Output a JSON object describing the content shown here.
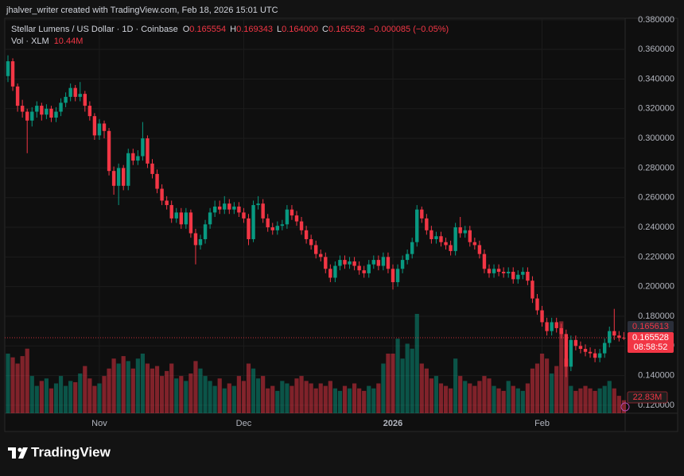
{
  "header": {
    "author_line": "jhalver_writer created with TradingView.com, Feb 18, 2026 15:01 UTC"
  },
  "footer": {
    "brand": "TradingView"
  },
  "chart_data": {
    "type": "candlestick",
    "title": "Stellar Lumens / US Dollar · 1D · Coinbase",
    "legend_ohlc_labels": [
      "O",
      "H",
      "L",
      "C"
    ],
    "legend_ohlc_values": [
      "0.165554",
      "0.169343",
      "0.164000",
      "0.165528"
    ],
    "change_label": "−0.000085 (−0.05%)",
    "volume_title": "Vol · XLM",
    "volume_last_label": "10.44M",
    "volume_side_label": "22.83M",
    "price_side_label": "0.165613",
    "last_price_label": "0.165528",
    "countdown_label": "08:58:52",
    "up_color": "#089981",
    "down_color": "#f23645",
    "grid": true,
    "ylim": [
      0.1146,
      0.381
    ],
    "yticks": [
      {
        "value": 0.12,
        "label": "0.120000"
      },
      {
        "value": 0.14,
        "label": "0.140000"
      },
      {
        "value": 0.16,
        "label": "0.160000"
      },
      {
        "value": 0.18,
        "label": "0.180000"
      },
      {
        "value": 0.2,
        "label": "0.200000"
      },
      {
        "value": 0.22,
        "label": "0.220000"
      },
      {
        "value": 0.24,
        "label": "0.240000"
      },
      {
        "value": 0.26,
        "label": "0.260000"
      },
      {
        "value": 0.28,
        "label": "0.280000"
      },
      {
        "value": 0.3,
        "label": "0.300000"
      },
      {
        "value": 0.32,
        "label": "0.320000"
      },
      {
        "value": 0.34,
        "label": "0.340000"
      },
      {
        "value": 0.36,
        "label": "0.360000"
      },
      {
        "value": 0.38,
        "label": "0.380000"
      }
    ],
    "categories": [
      null,
      null,
      null,
      null,
      null,
      null,
      null,
      null,
      null,
      null,
      null,
      null,
      null,
      null,
      null,
      null,
      null,
      null,
      null,
      "Nov",
      null,
      null,
      null,
      null,
      null,
      null,
      null,
      null,
      null,
      null,
      null,
      null,
      null,
      null,
      null,
      null,
      null,
      null,
      null,
      null,
      null,
      null,
      null,
      null,
      null,
      null,
      null,
      null,
      null,
      "Dec",
      null,
      null,
      null,
      null,
      null,
      null,
      null,
      null,
      null,
      null,
      null,
      null,
      null,
      null,
      null,
      null,
      null,
      null,
      null,
      null,
      null,
      null,
      null,
      null,
      null,
      null,
      null,
      null,
      null,
      null,
      "2026",
      null,
      null,
      null,
      null,
      null,
      null,
      null,
      null,
      null,
      null,
      null,
      null,
      null,
      null,
      null,
      null,
      null,
      null,
      null,
      null,
      null,
      null,
      null,
      null,
      null,
      null,
      null,
      null,
      null,
      null,
      "Feb",
      null,
      null,
      null,
      null,
      null,
      null,
      null,
      null,
      null,
      null,
      null,
      null,
      null,
      null,
      null,
      null,
      null
    ],
    "open": [
      0.342,
      0.352,
      0.335,
      0.322,
      0.318,
      0.312,
      0.318,
      0.322,
      0.316,
      0.32,
      0.314,
      0.318,
      0.324,
      0.328,
      0.334,
      0.328,
      0.33,
      0.322,
      0.315,
      0.302,
      0.31,
      0.305,
      0.278,
      0.268,
      0.28,
      0.268,
      0.29,
      0.285,
      0.288,
      0.3,
      0.283,
      0.276,
      0.266,
      0.258,
      0.255,
      0.246,
      0.25,
      0.242,
      0.25,
      0.236,
      0.228,
      0.232,
      0.242,
      0.25,
      0.254,
      0.252,
      0.256,
      0.252,
      0.254,
      0.25,
      0.246,
      0.232,
      0.255,
      0.256,
      0.246,
      0.24,
      0.238,
      0.241,
      0.242,
      0.252,
      0.248,
      0.244,
      0.238,
      0.232,
      0.228,
      0.222,
      0.22,
      0.212,
      0.206,
      0.214,
      0.218,
      0.215,
      0.217,
      0.214,
      0.211,
      0.209,
      0.215,
      0.218,
      0.214,
      0.22,
      0.212,
      0.203,
      0.212,
      0.218,
      0.222,
      0.23,
      0.252,
      0.246,
      0.238,
      0.232,
      0.234,
      0.23,
      0.228,
      0.224,
      0.24,
      0.236,
      0.238,
      0.23,
      0.228,
      0.222,
      0.212,
      0.209,
      0.212,
      0.21,
      0.209,
      0.21,
      0.205,
      0.208,
      0.21,
      0.204,
      0.192,
      0.184,
      0.176,
      0.17,
      0.176,
      0.172,
      0.168,
      0.146,
      0.164,
      0.16,
      0.158,
      0.156,
      0.155,
      0.152,
      0.155,
      0.162,
      0.17,
      0.167,
      0.165554
    ],
    "high": [
      0.356,
      0.354,
      0.337,
      0.326,
      0.32,
      0.321,
      0.325,
      0.324,
      0.323,
      0.322,
      0.321,
      0.327,
      0.331,
      0.337,
      0.336,
      0.338,
      0.332,
      0.325,
      0.317,
      0.313,
      0.312,
      0.307,
      0.281,
      0.283,
      0.282,
      0.293,
      0.293,
      0.292,
      0.311,
      0.302,
      0.286,
      0.279,
      0.269,
      0.261,
      0.258,
      0.253,
      0.253,
      0.253,
      0.252,
      0.239,
      0.235,
      0.245,
      0.253,
      0.258,
      0.258,
      0.261,
      0.259,
      0.257,
      0.257,
      0.253,
      0.249,
      0.258,
      0.261,
      0.259,
      0.249,
      0.243,
      0.244,
      0.245,
      0.255,
      0.255,
      0.251,
      0.247,
      0.241,
      0.235,
      0.231,
      0.225,
      0.223,
      0.215,
      0.217,
      0.221,
      0.221,
      0.22,
      0.22,
      0.217,
      0.214,
      0.218,
      0.221,
      0.221,
      0.223,
      0.223,
      0.215,
      0.215,
      0.221,
      0.225,
      0.233,
      0.255,
      0.254,
      0.249,
      0.241,
      0.237,
      0.237,
      0.233,
      0.231,
      0.243,
      0.247,
      0.241,
      0.241,
      0.233,
      0.231,
      0.225,
      0.215,
      0.215,
      0.215,
      0.213,
      0.213,
      0.213,
      0.211,
      0.213,
      0.213,
      0.207,
      0.195,
      0.187,
      0.179,
      0.179,
      0.179,
      0.175,
      0.171,
      0.167,
      0.167,
      0.163,
      0.161,
      0.159,
      0.158,
      0.158,
      0.165,
      0.173,
      0.185,
      0.17,
      0.169343
    ],
    "low": [
      0.338,
      0.332,
      0.318,
      0.314,
      0.29,
      0.308,
      0.314,
      0.312,
      0.313,
      0.311,
      0.311,
      0.315,
      0.321,
      0.325,
      0.325,
      0.325,
      0.318,
      0.312,
      0.299,
      0.299,
      0.3,
      0.275,
      0.262,
      0.255,
      0.265,
      0.265,
      0.282,
      0.282,
      0.285,
      0.28,
      0.273,
      0.263,
      0.255,
      0.252,
      0.243,
      0.243,
      0.239,
      0.239,
      0.233,
      0.215,
      0.225,
      0.229,
      0.239,
      0.247,
      0.249,
      0.249,
      0.249,
      0.249,
      0.247,
      0.243,
      0.228,
      0.23,
      0.252,
      0.243,
      0.237,
      0.235,
      0.235,
      0.238,
      0.239,
      0.245,
      0.241,
      0.235,
      0.229,
      0.225,
      0.219,
      0.217,
      0.209,
      0.203,
      0.203,
      0.211,
      0.212,
      0.212,
      0.211,
      0.208,
      0.206,
      0.206,
      0.212,
      0.211,
      0.211,
      0.209,
      0.198,
      0.2,
      0.209,
      0.215,
      0.219,
      0.227,
      0.243,
      0.235,
      0.229,
      0.229,
      0.227,
      0.225,
      0.221,
      0.221,
      0.233,
      0.233,
      0.227,
      0.225,
      0.219,
      0.209,
      0.206,
      0.206,
      0.207,
      0.206,
      0.206,
      0.202,
      0.202,
      0.205,
      0.201,
      0.189,
      0.181,
      0.173,
      0.167,
      0.167,
      0.169,
      0.165,
      0.139,
      0.143,
      0.157,
      0.155,
      0.153,
      0.152,
      0.149,
      0.149,
      0.152,
      0.159,
      0.164,
      0.163,
      0.164
    ],
    "close": [
      0.352,
      0.335,
      0.322,
      0.318,
      0.312,
      0.318,
      0.322,
      0.316,
      0.32,
      0.314,
      0.318,
      0.324,
      0.328,
      0.334,
      0.328,
      0.33,
      0.322,
      0.315,
      0.302,
      0.31,
      0.305,
      0.278,
      0.268,
      0.28,
      0.268,
      0.29,
      0.285,
      0.288,
      0.3,
      0.283,
      0.276,
      0.266,
      0.258,
      0.255,
      0.246,
      0.25,
      0.242,
      0.25,
      0.236,
      0.228,
      0.232,
      0.242,
      0.25,
      0.254,
      0.252,
      0.256,
      0.252,
      0.254,
      0.25,
      0.246,
      0.232,
      0.255,
      0.256,
      0.246,
      0.24,
      0.238,
      0.241,
      0.242,
      0.252,
      0.248,
      0.244,
      0.238,
      0.232,
      0.228,
      0.222,
      0.22,
      0.212,
      0.206,
      0.214,
      0.218,
      0.215,
      0.217,
      0.214,
      0.211,
      0.209,
      0.215,
      0.218,
      0.214,
      0.22,
      0.212,
      0.203,
      0.212,
      0.218,
      0.222,
      0.23,
      0.252,
      0.246,
      0.238,
      0.232,
      0.234,
      0.23,
      0.228,
      0.224,
      0.24,
      0.236,
      0.238,
      0.23,
      0.228,
      0.222,
      0.212,
      0.209,
      0.212,
      0.21,
      0.209,
      0.21,
      0.205,
      0.208,
      0.21,
      0.204,
      0.192,
      0.184,
      0.176,
      0.17,
      0.176,
      0.172,
      0.168,
      0.146,
      0.164,
      0.16,
      0.158,
      0.156,
      0.155,
      0.152,
      0.155,
      0.162,
      0.17,
      0.167,
      0.165554,
      0.165528
    ],
    "volume": [
      48,
      45,
      40,
      46,
      52,
      30,
      22,
      26,
      28,
      20,
      24,
      30,
      22,
      26,
      25,
      32,
      38,
      28,
      22,
      24,
      30,
      36,
      44,
      40,
      46,
      42,
      36,
      44,
      48,
      40,
      36,
      38,
      30,
      34,
      40,
      28,
      30,
      26,
      32,
      42,
      36,
      30,
      26,
      22,
      28,
      20,
      24,
      22,
      30,
      26,
      40,
      36,
      28,
      30,
      20,
      22,
      18,
      26,
      24,
      22,
      28,
      30,
      26,
      24,
      20,
      24,
      22,
      26,
      20,
      18,
      22,
      20,
      24,
      20,
      18,
      22,
      20,
      24,
      40,
      48,
      48,
      60,
      44,
      56,
      52,
      80,
      40,
      36,
      28,
      30,
      24,
      22,
      20,
      44,
      30,
      26,
      24,
      22,
      26,
      30,
      28,
      22,
      20,
      18,
      26,
      22,
      20,
      18,
      24,
      36,
      40,
      48,
      44,
      32,
      38,
      74,
      44,
      22,
      18,
      20,
      22,
      20,
      18,
      20,
      22,
      26,
      20,
      14,
      10.44
    ]
  }
}
